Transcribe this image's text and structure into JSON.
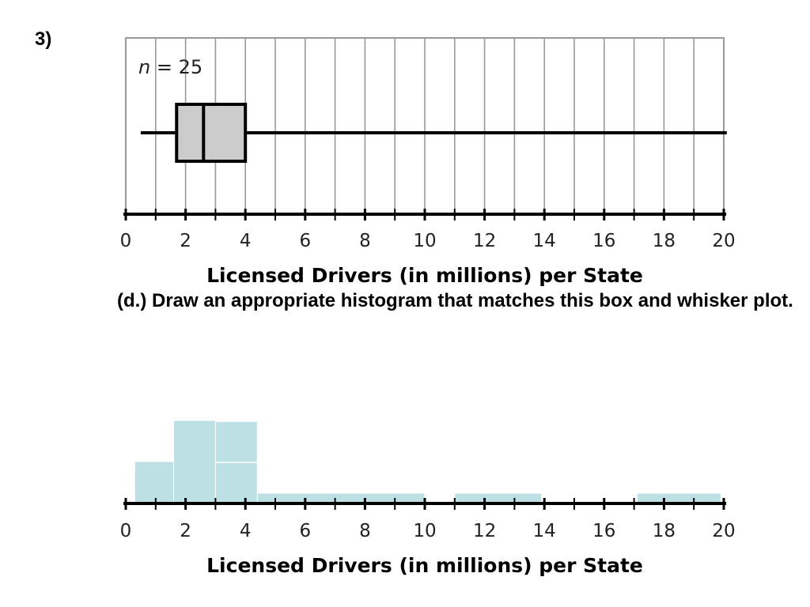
{
  "question_number": "3)",
  "prompt_text": "(d.)  Draw an appropriate histogram that matches this box and whisker plot.",
  "chart_data": [
    {
      "type": "boxplot",
      "n_label": {
        "var": "n",
        "rest": " = 25"
      },
      "xlabel": "Licensed Drivers (in millions) per State",
      "xlim": [
        0,
        20
      ],
      "ticks": [
        0,
        2,
        4,
        6,
        8,
        10,
        12,
        14,
        16,
        18,
        20
      ],
      "grid": true,
      "min": 0.5,
      "q1": 1.7,
      "median": 2.6,
      "q3": 4.0,
      "max": 20.1,
      "box_color": "#cccccc"
    },
    {
      "type": "bar",
      "xlabel": "Licensed Drivers (in millions) per State",
      "xlim": [
        0,
        20
      ],
      "ticks": [
        0,
        2,
        4,
        6,
        8,
        10,
        12,
        14,
        16,
        18,
        20
      ],
      "bar_color": "#bde0e5",
      "bars": [
        {
          "x0": 0.3,
          "x1": 1.6,
          "height": 1.0
        },
        {
          "x0": 1.6,
          "x1": 3.0,
          "height": 2.0
        },
        {
          "x0": 3.0,
          "x1": 4.4,
          "height": 2.0
        },
        {
          "x0": 4.4,
          "x1": 10.0,
          "height": 0.12
        },
        {
          "x0": 11.0,
          "x1": 13.9,
          "height": 0.12
        },
        {
          "x0": 17.1,
          "x1": 19.9,
          "height": 0.12
        }
      ]
    }
  ]
}
